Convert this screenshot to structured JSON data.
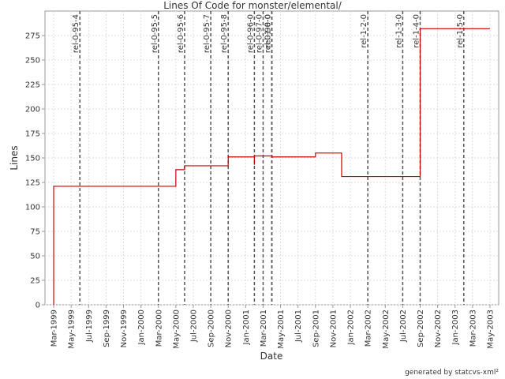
{
  "chart_data": {
    "type": "line",
    "step": "post",
    "title": "Lines Of Code for monster/elemental/",
    "x_label": "Date",
    "y_label": "Lines",
    "footer": "generated by statcvs-xml²",
    "x": [
      "1999-03",
      "1999-03",
      "2000-05",
      "2000-06",
      "2000-11",
      "2001-02",
      "2001-02",
      "2001-04",
      "2001-09",
      "2001-12",
      "2002-09",
      "2003-05"
    ],
    "series": [
      {
        "name": "Lines",
        "color": "#cc0000",
        "values": [
          0,
          121,
          138,
          142,
          151,
          143,
          152,
          151,
          155,
          131,
          282,
          282
        ]
      }
    ],
    "xlim": [
      "1999-02",
      "2003-06"
    ],
    "xticks": [
      {
        "value": "1999-03",
        "label": "Mar-1999"
      },
      {
        "value": "1999-05",
        "label": "May-1999"
      },
      {
        "value": "1999-07",
        "label": "Jul-1999"
      },
      {
        "value": "1999-09",
        "label": "Sep-1999"
      },
      {
        "value": "1999-11",
        "label": "Nov-1999"
      },
      {
        "value": "2000-01",
        "label": "Jan-2000"
      },
      {
        "value": "2000-03",
        "label": "Mar-2000"
      },
      {
        "value": "2000-05",
        "label": "May-2000"
      },
      {
        "value": "2000-07",
        "label": "Jul-2000"
      },
      {
        "value": "2000-09",
        "label": "Sep-2000"
      },
      {
        "value": "2000-11",
        "label": "Nov-2000"
      },
      {
        "value": "2001-01",
        "label": "Jan-2001"
      },
      {
        "value": "2001-03",
        "label": "Mar-2001"
      },
      {
        "value": "2001-05",
        "label": "May-2001"
      },
      {
        "value": "2001-07",
        "label": "Jul-2001"
      },
      {
        "value": "2001-09",
        "label": "Sep-2001"
      },
      {
        "value": "2001-11",
        "label": "Nov-2001"
      },
      {
        "value": "2002-01",
        "label": "Jan-2002"
      },
      {
        "value": "2002-03",
        "label": "Mar-2002"
      },
      {
        "value": "2002-05",
        "label": "May-2002"
      },
      {
        "value": "2002-07",
        "label": "Jul-2002"
      },
      {
        "value": "2002-09",
        "label": "Sep-2002"
      },
      {
        "value": "2002-11",
        "label": "Nov-2002"
      },
      {
        "value": "2003-01",
        "label": "Jan-2003"
      },
      {
        "value": "2003-03",
        "label": "Mar-2003"
      },
      {
        "value": "2003-05",
        "label": "May-2003"
      }
    ],
    "ylim": [
      0,
      300
    ],
    "yticks": [
      0,
      25,
      50,
      75,
      100,
      125,
      150,
      175,
      200,
      225,
      250,
      275
    ],
    "grid": true,
    "markers": [
      {
        "label": "rel-0-95-4",
        "x": "1999-06"
      },
      {
        "label": "rel-0-95-5",
        "x": "2000-03"
      },
      {
        "label": "rel-0-95-6",
        "x": "2000-06"
      },
      {
        "label": "rel-0-95-7",
        "x": "2000-09"
      },
      {
        "label": "rel-0-95-8",
        "x": "2000-11"
      },
      {
        "label": "rel-0-96-0",
        "x": "2001-02"
      },
      {
        "label": "rel-0-97-0",
        "x": "2001-03"
      },
      {
        "label": "rel-0-98-0",
        "x": "2001-04"
      },
      {
        "label": "rel-1-0-0",
        "x": "2001-04"
      },
      {
        "label": "rel-1-2-0",
        "x": "2002-03"
      },
      {
        "label": "rel-1-3-0",
        "x": "2002-07"
      },
      {
        "label": "rel-1-4-0",
        "x": "2002-09"
      },
      {
        "label": "rel-1-5-0",
        "x": "2003-02"
      }
    ]
  }
}
